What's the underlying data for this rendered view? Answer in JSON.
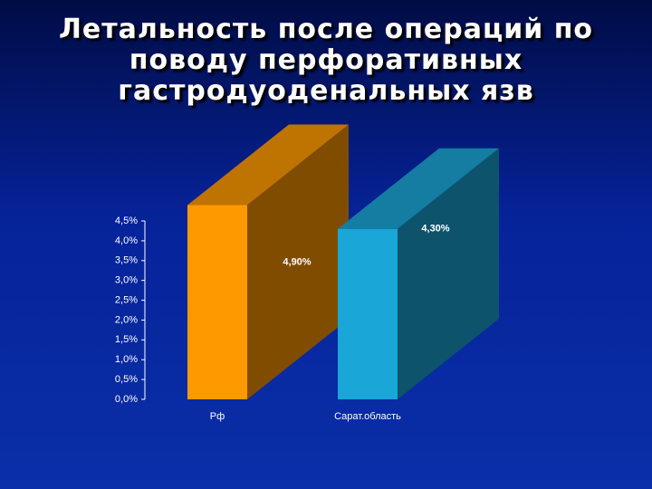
{
  "chart_data": {
    "type": "bar3d",
    "title": "Летальность после операций по поводу перфоративных гастродуоденальных язв",
    "categories": [
      "Рф",
      "Сарат.область"
    ],
    "values": [
      4.9,
      4.3
    ],
    "value_labels": [
      "4,90%",
      "4,30%"
    ],
    "colors": [
      "#ff9900",
      "#1aa6d6"
    ],
    "ylim": [
      0,
      4.5
    ],
    "yticks": [
      {
        "value": 0,
        "label": "0,0%"
      },
      {
        "value": 0.5,
        "label": "0,5%"
      },
      {
        "value": 1,
        "label": "1,0%"
      },
      {
        "value": 1.5,
        "label": "1,5%"
      },
      {
        "value": 2,
        "label": "2,0%"
      },
      {
        "value": 2.5,
        "label": "2,5%"
      },
      {
        "value": 3,
        "label": "3,0%"
      },
      {
        "value": 3.5,
        "label": "3,5%"
      },
      {
        "value": 4,
        "label": "4,0%"
      },
      {
        "value": 4.5,
        "label": "4,5%"
      }
    ]
  }
}
